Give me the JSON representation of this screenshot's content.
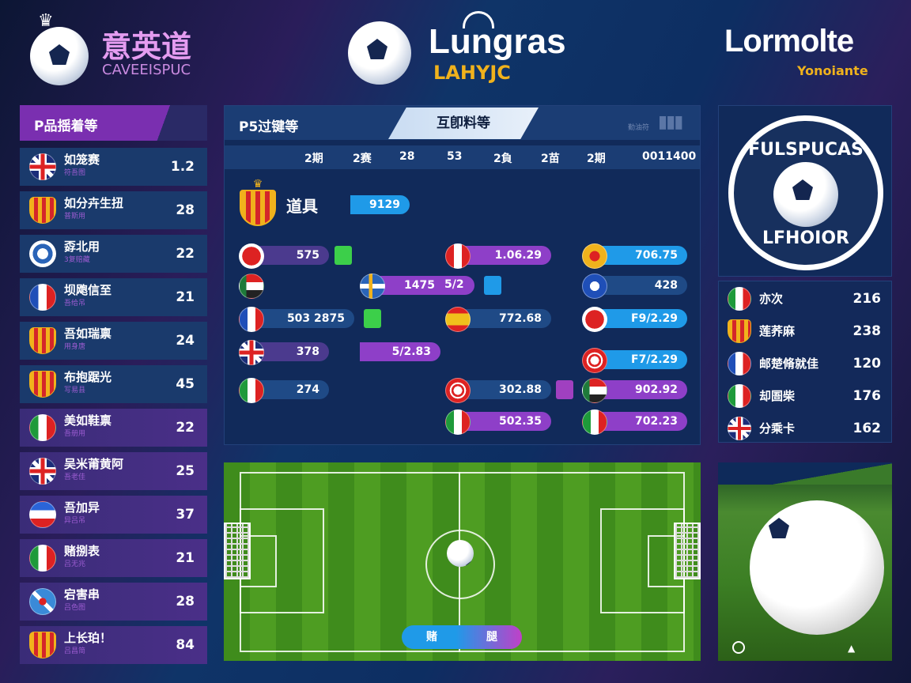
{
  "header": {
    "left": {
      "title": "意英道",
      "subtitle": "CAVEEISPUC"
    },
    "center": {
      "title": "Lungras",
      "subtitle": "LAHYJC"
    },
    "right": {
      "title": "Lormolte",
      "subtitle": "Yonoiante"
    }
  },
  "colors": {
    "accent_purple": "#8e3fc8",
    "accent_blue": "#1f9ae8",
    "panel": "#13295a",
    "subtitle_gold": "#f0b21c"
  },
  "left_panel": {
    "title": "P品揺着等",
    "rows": [
      {
        "flag": "uk",
        "name": "如笼赛",
        "sub": "符吾图",
        "value": "1.2"
      },
      {
        "flag": "crest",
        "name": "如分卉生扭",
        "sub": "普斯用",
        "value": "28"
      },
      {
        "flag": "blue-white",
        "name": "孬北用",
        "sub": "3复赔藏",
        "value": "22"
      },
      {
        "flag": "france",
        "name": "坝飑信至",
        "sub": "吾给吊",
        "value": "21"
      },
      {
        "flag": "crest",
        "name": "吾如瑞禀",
        "sub": "用身唐",
        "value": "24"
      },
      {
        "flag": "crest",
        "name": "布抱踞光",
        "sub": "写易县",
        "value": "45"
      },
      {
        "flag": "italy",
        "name": "美如鞋禀",
        "sub": "吾册用",
        "value": "22"
      },
      {
        "flag": "uk",
        "name": "吴米莆黄阿",
        "sub": "吾老佳",
        "value": "25"
      },
      {
        "flag": "red-white-blue",
        "name": "吾加异",
        "sub": "异吕吊",
        "value": "37"
      },
      {
        "flag": "italy",
        "name": "赌捌表",
        "sub": "吕无兆",
        "value": "21"
      },
      {
        "flag": "uk-blue",
        "name": "宕害串",
        "sub": "吕色图",
        "value": "28"
      },
      {
        "flag": "crest",
        "name": "上长珀！",
        "sub": "吕昌简",
        "value": "84"
      }
    ]
  },
  "bracket": {
    "title": "P5过键等",
    "active_tab": "互卽料等",
    "tab_small": "勤油符",
    "columns": [
      "2期",
      "2赛",
      "28",
      "53",
      "2負",
      "2苗",
      "2期",
      "0011400"
    ],
    "featured": {
      "name": "道具",
      "value": "9129"
    },
    "items": [
      {
        "flag": "red-crest",
        "value": "575"
      },
      {
        "flag": "sudan"
      },
      {
        "flag": "france",
        "value": "503 2875"
      },
      {
        "flag": "uk",
        "value": "378"
      },
      {
        "flag": "italy",
        "value": "274"
      },
      {
        "flag": "sweden",
        "value": "1475",
        "value2": "5/2"
      },
      {
        "value": "5/2.83"
      },
      {
        "flag": "peru",
        "value": "1.06.29"
      },
      {
        "flag": "spain",
        "value": "772.68"
      },
      {
        "flag": "tunisia",
        "value": "302.88"
      },
      {
        "flag": "italy",
        "value": "502.35"
      },
      {
        "flag": "gold",
        "value": "706.75"
      },
      {
        "flag": "blue-crest",
        "value": "428"
      },
      {
        "flag": "red-crest",
        "value": "F9/2.29"
      },
      {
        "flag": "tunisia",
        "value": "F7/2.29"
      },
      {
        "flag": "sudan",
        "value": "902.92"
      },
      {
        "flag": "italy",
        "value": "702.23"
      }
    ]
  },
  "badge": {
    "top": "FULSPUCAS",
    "bottom": "LFHOIOR"
  },
  "right_list": [
    {
      "flag": "italy",
      "name": "亦次",
      "value": "216"
    },
    {
      "flag": "crest",
      "name": "莲荞麻",
      "value": "238"
    },
    {
      "flag": "france",
      "name": "邮楚脩就佳",
      "value": "120"
    },
    {
      "flag": "italy",
      "name": "却圄柴",
      "value": "176"
    },
    {
      "flag": "uk",
      "name": "分乘卡",
      "value": "162"
    }
  ],
  "pitch": {
    "btn_left": "赌",
    "btn_right": "腿"
  }
}
